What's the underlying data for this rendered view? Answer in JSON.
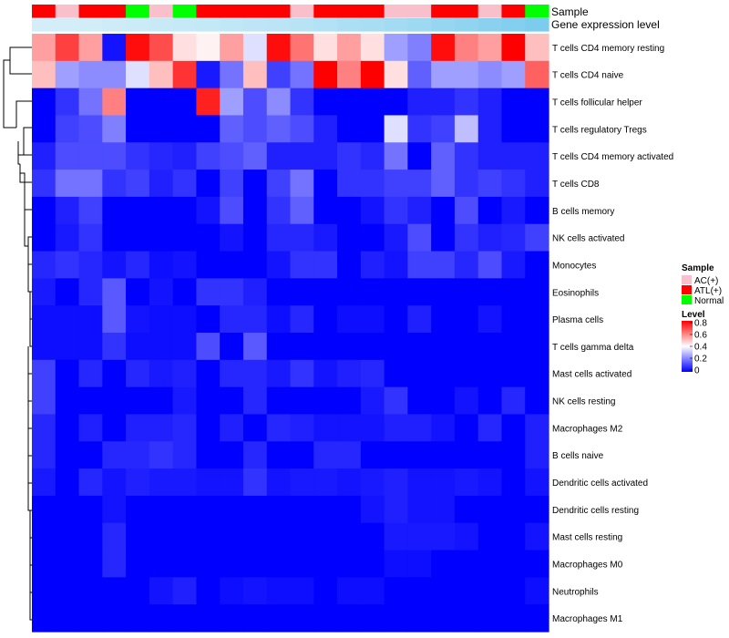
{
  "chart_data": {
    "type": "heatmap",
    "annotation_labels": {
      "sample": "Sample",
      "level": "Gene expression level"
    },
    "samples": [
      "ATL(+)",
      "AC(+)",
      "ATL(+)",
      "ATL(+)",
      "Normal",
      "AC(+)",
      "Normal",
      "ATL(+)",
      "ATL(+)",
      "ATL(+)",
      "ATL(+)",
      "AC(+)",
      "ATL(+)",
      "ATL(+)",
      "ATL(+)",
      "AC(+)",
      "AC(+)",
      "ATL(+)",
      "ATL(+)",
      "AC(+)",
      "ATL(+)",
      "Normal"
    ],
    "sample_colors": {
      "AC(+)": "#f9c0cb",
      "ATL(+)": "#ff0000",
      "Normal": "#00ff00"
    },
    "expression_levels": [
      0.1,
      0.1,
      0.12,
      0.14,
      0.16,
      0.18,
      0.2,
      0.22,
      0.24,
      0.26,
      0.28,
      0.3,
      0.34,
      0.38,
      0.42,
      0.46,
      0.5,
      0.55,
      0.6,
      0.65,
      0.7,
      0.75
    ],
    "rows": [
      "T cells CD4 memory resting",
      "T cells CD4 naive",
      "T cells follicular helper",
      "T cells regulatory  Tregs",
      "T cells CD4 memory activated",
      "T cells CD8",
      "B cells memory",
      "NK cells activated",
      "Monocytes",
      "Eosinophils",
      "Plasma cells",
      "T cells gamma delta",
      "Mast cells activated",
      "NK cells resting",
      "Macrophages M2",
      "B cells naive",
      "Dendritic cells activated",
      "Dendritic cells resting",
      "Mast cells resting",
      "Macrophages M0",
      "Neutrophils",
      "Macrophages M1"
    ],
    "values": [
      [
        0.55,
        0.7,
        0.55,
        0.03,
        0.78,
        0.68,
        0.45,
        0.42,
        0.55,
        0.35,
        0.78,
        0.62,
        0.45,
        0.55,
        0.45,
        0.25,
        0.2,
        0.78,
        0.6,
        0.55,
        0.8,
        0.5
      ],
      [
        0.5,
        0.25,
        0.22,
        0.22,
        0.35,
        0.5,
        0.72,
        0.04,
        0.18,
        0.5,
        0.1,
        0.18,
        0.8,
        0.6,
        0.8,
        0.45,
        0.15,
        0.25,
        0.25,
        0.22,
        0.25,
        0.65
      ],
      [
        0.0,
        0.08,
        0.18,
        0.6,
        0.0,
        0.0,
        0.0,
        0.75,
        0.25,
        0.12,
        0.22,
        0.08,
        0.0,
        0.0,
        0.0,
        0.0,
        0.05,
        0.05,
        0.08,
        0.05,
        0.0,
        0.0
      ],
      [
        0.0,
        0.1,
        0.12,
        0.2,
        0.0,
        0.0,
        0.0,
        0.0,
        0.15,
        0.12,
        0.15,
        0.12,
        0.05,
        0.0,
        0.0,
        0.35,
        0.08,
        0.1,
        0.3,
        0.05,
        0.0,
        0.0
      ],
      [
        0.05,
        0.12,
        0.12,
        0.12,
        0.08,
        0.06,
        0.05,
        0.1,
        0.12,
        0.15,
        0.05,
        0.05,
        0.05,
        0.08,
        0.06,
        0.18,
        0.0,
        0.15,
        0.08,
        0.05,
        0.05,
        0.05
      ],
      [
        0.08,
        0.18,
        0.18,
        0.08,
        0.1,
        0.05,
        0.08,
        0.0,
        0.1,
        0.0,
        0.1,
        0.18,
        0.0,
        0.08,
        0.08,
        0.1,
        0.1,
        0.15,
        0.08,
        0.1,
        0.08,
        0.05
      ],
      [
        0.0,
        0.05,
        0.1,
        0.0,
        0.0,
        0.0,
        0.0,
        0.03,
        0.12,
        0.0,
        0.08,
        0.15,
        0.0,
        0.0,
        0.03,
        0.08,
        0.05,
        0.0,
        0.12,
        0.0,
        0.04,
        0.0
      ],
      [
        0.0,
        0.04,
        0.08,
        0.0,
        0.0,
        0.0,
        0.0,
        0.0,
        0.03,
        0.0,
        0.06,
        0.06,
        0.04,
        0.0,
        0.0,
        0.04,
        0.12,
        0.0,
        0.08,
        0.05,
        0.06,
        0.1
      ],
      [
        0.06,
        0.08,
        0.06,
        0.03,
        0.06,
        0.02,
        0.03,
        0.0,
        0.0,
        0.0,
        0.03,
        0.08,
        0.08,
        0.0,
        0.05,
        0.03,
        0.1,
        0.1,
        0.06,
        0.12,
        0.04,
        0.0
      ],
      [
        0.04,
        0.0,
        0.06,
        0.14,
        0.0,
        0.03,
        0.0,
        0.08,
        0.08,
        0.05,
        0.0,
        0.0,
        0.0,
        0.0,
        0.0,
        0.0,
        0.0,
        0.0,
        0.0,
        0.0,
        0.0,
        0.0
      ],
      [
        0.02,
        0.02,
        0.02,
        0.14,
        0.03,
        0.02,
        0.02,
        0.0,
        0.06,
        0.06,
        0.02,
        0.06,
        0.0,
        0.02,
        0.02,
        0.0,
        0.05,
        0.0,
        0.0,
        0.03,
        0.0,
        0.0
      ],
      [
        0.02,
        0.02,
        0.02,
        0.08,
        0.02,
        0.02,
        0.02,
        0.12,
        0.0,
        0.14,
        0.0,
        0.0,
        0.0,
        0.0,
        0.0,
        0.0,
        0.0,
        0.0,
        0.0,
        0.0,
        0.0,
        0.0
      ],
      [
        0.1,
        0.0,
        0.06,
        0.0,
        0.06,
        0.04,
        0.05,
        0.0,
        0.06,
        0.06,
        0.04,
        0.08,
        0.03,
        0.05,
        0.06,
        0.0,
        0.0,
        0.0,
        0.0,
        0.0,
        0.0,
        0.0
      ],
      [
        0.1,
        0.0,
        0.0,
        0.0,
        0.0,
        0.0,
        0.04,
        0.0,
        0.0,
        0.06,
        0.0,
        0.0,
        0.0,
        0.0,
        0.04,
        0.08,
        0.0,
        0.0,
        0.03,
        0.0,
        0.06,
        0.0
      ],
      [
        0.06,
        0.0,
        0.05,
        0.0,
        0.05,
        0.05,
        0.06,
        0.0,
        0.05,
        0.0,
        0.06,
        0.05,
        0.03,
        0.03,
        0.03,
        0.05,
        0.05,
        0.03,
        0.0,
        0.06,
        0.0,
        0.05
      ],
      [
        0.06,
        0.0,
        0.0,
        0.06,
        0.06,
        0.08,
        0.06,
        0.0,
        0.0,
        0.06,
        0.0,
        0.0,
        0.06,
        0.06,
        0.0,
        0.0,
        0.0,
        0.0,
        0.0,
        0.0,
        0.0,
        0.05
      ],
      [
        0.04,
        0.0,
        0.06,
        0.03,
        0.05,
        0.04,
        0.04,
        0.03,
        0.03,
        0.08,
        0.03,
        0.04,
        0.04,
        0.03,
        0.04,
        0.05,
        0.03,
        0.03,
        0.04,
        0.03,
        0.0,
        0.03
      ],
      [
        0.0,
        0.0,
        0.0,
        0.03,
        0.0,
        0.0,
        0.0,
        0.0,
        0.0,
        0.0,
        0.0,
        0.0,
        0.0,
        0.0,
        0.03,
        0.05,
        0.03,
        0.03,
        0.0,
        0.0,
        0.0,
        0.0
      ],
      [
        0.0,
        0.0,
        0.0,
        0.06,
        0.0,
        0.0,
        0.0,
        0.0,
        0.0,
        0.0,
        0.0,
        0.0,
        0.0,
        0.0,
        0.0,
        0.04,
        0.04,
        0.04,
        0.03,
        0.0,
        0.0,
        0.03
      ],
      [
        0.0,
        0.0,
        0.0,
        0.06,
        0.0,
        0.0,
        0.0,
        0.0,
        0.0,
        0.0,
        0.0,
        0.0,
        0.0,
        0.0,
        0.0,
        0.02,
        0.02,
        0.0,
        0.0,
        0.0,
        0.0,
        0.0
      ],
      [
        0.0,
        0.0,
        0.0,
        0.0,
        0.0,
        0.03,
        0.05,
        0.0,
        0.02,
        0.03,
        0.02,
        0.02,
        0.0,
        0.02,
        0.02,
        0.0,
        0.0,
        0.0,
        0.0,
        0.0,
        0.0,
        0.02
      ],
      [
        0.0,
        0.0,
        0.0,
        0.0,
        0.0,
        0.0,
        0.0,
        0.0,
        0.0,
        0.0,
        0.0,
        0.0,
        0.0,
        0.0,
        0.0,
        0.0,
        0.0,
        0.0,
        0.0,
        0.0,
        0.0,
        0.0
      ]
    ],
    "legend": {
      "sample_title": "Sample",
      "sample_items": [
        "AC(+)",
        "ATL(+)",
        "Normal"
      ],
      "level_title": "Level",
      "level_ticks": [
        0.8,
        0.6,
        0.4,
        0.2,
        0
      ],
      "level_range": [
        0,
        0.8
      ],
      "color_low": "#0000ff",
      "color_mid": "#ffffff",
      "color_high": "#ff0000",
      "level_color_low": "#e0f3fa",
      "level_color_high": "#5bbfea"
    }
  }
}
